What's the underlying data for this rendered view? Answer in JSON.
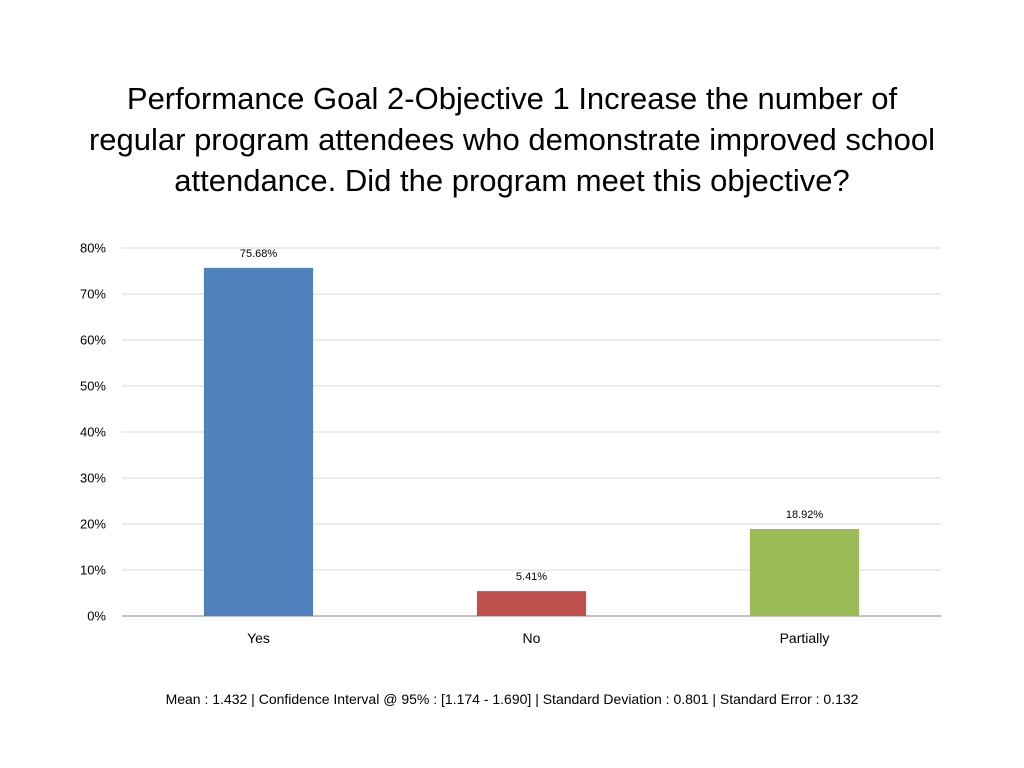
{
  "chart_data": {
    "type": "bar",
    "title": "Performance Goal 2-Objective 1 Increase the number of regular program attendees who demonstrate improved school attendance. Did the program meet this objective?",
    "categories": [
      "Yes",
      "No",
      "Partially"
    ],
    "values": [
      75.68,
      5.41,
      18.92
    ],
    "data_labels": [
      "75.68%",
      "5.41%",
      "18.92%"
    ],
    "colors": [
      "#4F81BD",
      "#C0504D",
      "#9BBB59"
    ],
    "ylim": [
      0,
      80
    ],
    "yticks": [
      0,
      10,
      20,
      30,
      40,
      50,
      60,
      70,
      80
    ],
    "ytick_labels": [
      "0%",
      "10%",
      "20%",
      "30%",
      "40%",
      "50%",
      "60%",
      "70%",
      "80%"
    ],
    "xlabel": "",
    "ylabel": "",
    "grid": true,
    "legend": false
  },
  "stats": {
    "text": "Mean : 1.432  | Confidence Interval @ 95% : [1.174 - 1.690]  |  Standard Deviation : 0.801  |  Standard Error : 0.132"
  }
}
